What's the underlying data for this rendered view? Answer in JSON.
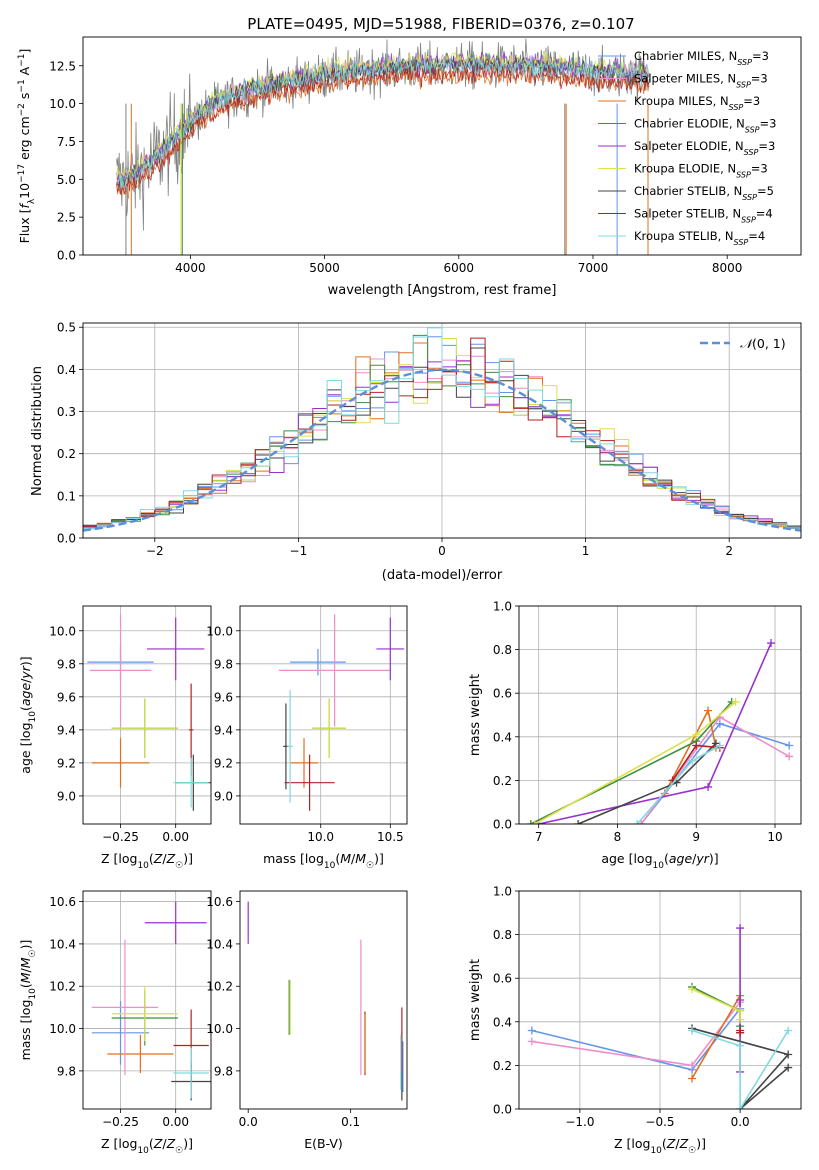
{
  "figure_title": "PLATE=0495, MJD=51988, FIBERID=0376, z=0.107",
  "chart_data": [
    {
      "type": "line",
      "id": "spectrum",
      "xlabel": "wavelength [Angstrom, rest frame]",
      "ylabel": "Flux [f_λ 10^-17 erg cm^-2 s^-1 A^-1]",
      "xlim": [
        3200,
        8550
      ],
      "ylim": [
        0,
        14.4
      ],
      "xticks": [
        4000,
        5000,
        6000,
        7000,
        8000
      ],
      "yticks": [
        0.0,
        2.5,
        5.0,
        7.5,
        10.0,
        12.5
      ],
      "grid": false,
      "legend_position": "right",
      "continuum_points": [
        [
          3450,
          4.8
        ],
        [
          3600,
          5.3
        ],
        [
          3700,
          6.0
        ],
        [
          3850,
          7.3
        ],
        [
          4000,
          8.7
        ],
        [
          4200,
          10.0
        ],
        [
          4500,
          11.0
        ],
        [
          5000,
          11.8
        ],
        [
          5500,
          12.3
        ],
        [
          6000,
          12.5
        ],
        [
          6500,
          12.4
        ],
        [
          6800,
          12.2
        ],
        [
          7000,
          12.0
        ],
        [
          7300,
          11.9
        ],
        [
          7420,
          11.8
        ]
      ],
      "series": [
        {
          "name": "Chabrier MILES, N_SSP=3",
          "color": "#6495ed"
        },
        {
          "name": "Salpeter MILES, N_SSP=3",
          "color": "#f08ccc"
        },
        {
          "name": "Kroupa MILES, N_SSP=3",
          "color": "#e07020"
        },
        {
          "name": "Chabrier ELODIE, N_SSP=3",
          "color": "#3f8f3f"
        },
        {
          "name": "Salpeter ELODIE, N_SSP=3",
          "color": "#9932cc"
        },
        {
          "name": "Kroupa ELODIE, N_SSP=3",
          "color": "#dce14a"
        },
        {
          "name": "Chabrier STELIB, N_SSP=5",
          "color": "#444444"
        },
        {
          "name": "Salpeter STELIB, N_SSP=4",
          "color": "#b22222"
        },
        {
          "name": "Kroupa STELIB, N_SSP=4",
          "color": "#7fd9e0"
        }
      ]
    },
    {
      "type": "line",
      "id": "residual-histogram",
      "xlabel": "(data-model)/error",
      "ylabel": "Normed distribution",
      "xlim": [
        -2.5,
        2.5
      ],
      "ylim": [
        0,
        0.51
      ],
      "xticks": [
        -2,
        -1,
        0,
        1,
        2
      ],
      "yticks": [
        0.0,
        0.1,
        0.2,
        0.3,
        0.4,
        0.5
      ],
      "grid": true,
      "legend_position": "top-right",
      "legend_label": "N(0,1)",
      "bins_start": -2.5,
      "bin_width": 0.1,
      "curve": "normal pdf, mean 0, sigma 1"
    },
    {
      "type": "scatter",
      "id": "age-vs-Z",
      "xlabel": "Z [log10(Z/Z☉)]",
      "ylabel": "age [log10(age/yr)]",
      "xlim": [
        -0.42,
        0.16
      ],
      "ylim": [
        8.83,
        10.15
      ],
      "xticks": [
        -0.25,
        0.0
      ],
      "yticks": [
        9.0,
        9.2,
        9.4,
        9.6,
        9.8,
        10.0
      ],
      "grid": true,
      "points": [
        {
          "color": "#6495ed",
          "x": -0.25,
          "y": 9.81,
          "xerr": 0.15,
          "yerr": 0.1
        },
        {
          "color": "#e07020",
          "x": -0.25,
          "y": 9.2,
          "xerr": 0.13,
          "yerr": 0.15
        },
        {
          "color": "#f08ccc",
          "x": -0.25,
          "y": 9.76,
          "xerr": 0.14,
          "yerr": 0.34
        },
        {
          "color": "#3f8f3f",
          "x": -0.14,
          "y": 9.41,
          "xerr": 0.15,
          "yerr": 0.18
        },
        {
          "color": "#dce14a",
          "x": -0.14,
          "y": 9.41,
          "xerr": 0.15,
          "yerr": 0.18
        },
        {
          "color": "#9932cc",
          "x": 0.0,
          "y": 9.89,
          "xerr": 0.13,
          "yerr": 0.19
        },
        {
          "color": "#b22222",
          "x": 0.07,
          "y": 9.4,
          "xerr": 0.01,
          "yerr": 0.28
        },
        {
          "color": "#444444",
          "x": 0.08,
          "y": 9.08,
          "xerr": 0.08,
          "yerr": 0.17
        },
        {
          "color": "#7fd9e0",
          "x": 0.07,
          "y": 9.08,
          "xerr": 0.08,
          "yerr": 0.15
        }
      ]
    },
    {
      "type": "scatter",
      "id": "age-vs-mass",
      "xlabel": "mass [log10(M/M☉)]",
      "ylabel": "",
      "xlim": [
        9.42,
        10.62
      ],
      "ylim": [
        8.83,
        10.15
      ],
      "xticks": [
        10.0,
        10.5
      ],
      "yticks": [
        9.0,
        9.2,
        9.4,
        9.6,
        9.8,
        10.0
      ],
      "grid": true,
      "points": [
        {
          "color": "#6495ed",
          "x": 9.98,
          "y": 9.81,
          "xerr": 0.2,
          "yerr": 0.08
        },
        {
          "color": "#e07020",
          "x": 9.88,
          "y": 9.2,
          "xerr": 0.1,
          "yerr": 0.15
        },
        {
          "color": "#f08ccc",
          "x": 10.1,
          "y": 9.76,
          "xerr": 0.4,
          "yerr": 0.34
        },
        {
          "color": "#3f8f3f",
          "x": 10.06,
          "y": 9.41,
          "xerr": 0.12,
          "yerr": 0.18
        },
        {
          "color": "#dce14a",
          "x": 10.06,
          "y": 9.41,
          "xerr": 0.12,
          "yerr": 0.18
        },
        {
          "color": "#9932cc",
          "x": 10.5,
          "y": 9.89,
          "xerr": 0.1,
          "yerr": 0.19
        },
        {
          "color": "#b22222",
          "x": 9.92,
          "y": 9.08,
          "xerr": 0.18,
          "yerr": 0.17
        },
        {
          "color": "#444444",
          "x": 9.75,
          "y": 9.3,
          "xerr": 0.02,
          "yerr": 0.26
        },
        {
          "color": "#7fd9e0",
          "x": 9.78,
          "y": 9.3,
          "xerr": 0.02,
          "yerr": 0.34
        }
      ]
    },
    {
      "type": "line",
      "id": "mass-weight-vs-age",
      "xlabel": "age [log10(age/yr)]",
      "ylabel": "mass weight",
      "xlim": [
        6.75,
        10.33
      ],
      "ylim": [
        0,
        1.0
      ],
      "xticks": [
        7,
        8,
        9,
        10
      ],
      "yticks": [
        0.0,
        0.2,
        0.4,
        0.6,
        0.8,
        1.0
      ],
      "grid": true,
      "series": [
        {
          "color": "#6495ed",
          "x": [
            8.3,
            9.3,
            10.18
          ],
          "y": [
            0.0,
            0.46,
            0.36
          ]
        },
        {
          "color": "#f08ccc",
          "x": [
            8.3,
            9.3,
            10.18
          ],
          "y": [
            0.0,
            0.49,
            0.31
          ]
        },
        {
          "color": "#e07020",
          "x": [
            8.6,
            9.15,
            9.25
          ],
          "y": [
            0.14,
            0.52,
            0.35
          ]
        },
        {
          "color": "#3f8f3f",
          "x": [
            6.9,
            9.0,
            9.45
          ],
          "y": [
            0.0,
            0.38,
            0.56
          ]
        },
        {
          "color": "#9932cc",
          "x": [
            7.0,
            9.15,
            9.95
          ],
          "y": [
            0.0,
            0.17,
            0.83
          ]
        },
        {
          "color": "#dce14a",
          "x": [
            6.95,
            9.0,
            9.5
          ],
          "y": [
            0.0,
            0.41,
            0.56
          ]
        },
        {
          "color": "#444444",
          "x": [
            7.5,
            8.75,
            9.25
          ],
          "y": [
            0.0,
            0.19,
            0.37
          ]
        },
        {
          "color": "#b22222",
          "x": [
            8.7,
            9.0,
            9.3
          ],
          "y": [
            0.2,
            0.36,
            0.35
          ]
        },
        {
          "color": "#7fd9e0",
          "x": [
            8.25,
            8.95,
            9.3
          ],
          "y": [
            0.0,
            0.29,
            0.36
          ]
        }
      ]
    },
    {
      "type": "scatter",
      "id": "mass-vs-Z",
      "xlabel": "Z [log10(Z/Z☉)]",
      "ylabel": "mass [log10(M/M☉)]",
      "xlim": [
        -0.42,
        0.16
      ],
      "ylim": [
        9.62,
        10.65
      ],
      "xticks": [
        -0.25,
        0.0
      ],
      "yticks": [
        9.8,
        10.0,
        10.2,
        10.4,
        10.6
      ],
      "grid": true,
      "points": [
        {
          "color": "#6495ed",
          "x": -0.25,
          "y": 9.98,
          "xerr": 0.13,
          "yerr": 0.15
        },
        {
          "color": "#e07020",
          "x": -0.16,
          "y": 9.88,
          "xerr": 0.15,
          "yerr": 0.09
        },
        {
          "color": "#f08ccc",
          "x": -0.23,
          "y": 10.1,
          "xerr": 0.15,
          "yerr": 0.32
        },
        {
          "color": "#3f8f3f",
          "x": -0.14,
          "y": 10.05,
          "xerr": 0.15,
          "yerr": 0.13
        },
        {
          "color": "#dce14a",
          "x": -0.14,
          "y": 10.07,
          "xerr": 0.15,
          "yerr": 0.13
        },
        {
          "color": "#9932cc",
          "x": 0.0,
          "y": 10.5,
          "xerr": 0.14,
          "yerr": 0.1
        },
        {
          "color": "#b22222",
          "x": 0.07,
          "y": 9.92,
          "xerr": 0.08,
          "yerr": 0.17
        },
        {
          "color": "#444444",
          "x": 0.07,
          "y": 9.75,
          "xerr": 0.09,
          "yerr": 0.09
        },
        {
          "color": "#7fd9e0",
          "x": 0.07,
          "y": 9.79,
          "xerr": 0.08,
          "yerr": 0.12
        }
      ]
    },
    {
      "type": "scatter",
      "id": "mass-vs-EBV",
      "xlabel": "E(B-V)",
      "ylabel": "",
      "xlim": [
        -0.008,
        0.155
      ],
      "ylim": [
        9.62,
        10.65
      ],
      "xticks": [
        0.0,
        0.1
      ],
      "yticks": [
        9.8,
        10.0,
        10.2,
        10.4,
        10.6
      ],
      "grid": false,
      "points": [
        {
          "color": "#9932cc",
          "x": 0.0,
          "y": 10.5,
          "xerr": 0.0,
          "yerr": 0.1
        },
        {
          "color": "#3f8f3f",
          "x": 0.04,
          "y": 10.1,
          "xerr": 0.0,
          "yerr": 0.13
        },
        {
          "color": "#dce14a",
          "x": 0.041,
          "y": 10.1,
          "xerr": 0.0,
          "yerr": 0.13
        },
        {
          "color": "#f08ccc",
          "x": 0.11,
          "y": 10.1,
          "xerr": 0.0,
          "yerr": 0.32
        },
        {
          "color": "#b22222",
          "x": 0.114,
          "y": 9.93,
          "xerr": 0.0,
          "yerr": 0.15
        },
        {
          "color": "#e07020",
          "x": 0.114,
          "y": 9.93,
          "xerr": 0.0,
          "yerr": 0.14
        },
        {
          "color": "#6495ed",
          "x": 0.151,
          "y": 9.82,
          "xerr": 0.0,
          "yerr": 0.12
        },
        {
          "color": "#444444",
          "x": 0.15,
          "y": 9.82,
          "xerr": 0.0,
          "yerr": 0.16
        },
        {
          "color": "#b22222",
          "x": 0.15,
          "y": 9.95,
          "xerr": 0.0,
          "yerr": 0.15
        },
        {
          "color": "#7fd9e0",
          "x": 0.149,
          "y": 9.84,
          "xerr": 0.0,
          "yerr": 0.13
        }
      ]
    },
    {
      "type": "line",
      "id": "mass-weight-vs-Z",
      "xlabel": "Z [log10(Z/Z☉)]",
      "ylabel": "mass weight",
      "xlim": [
        -1.38,
        0.38
      ],
      "ylim": [
        0,
        1.0
      ],
      "xticks": [
        -1.0,
        -0.5,
        0.0
      ],
      "yticks": [
        0.0,
        0.2,
        0.4,
        0.6,
        0.8,
        1.0
      ],
      "grid": true,
      "series": [
        {
          "color": "#6495ed",
          "x": [
            -1.3,
            -0.3,
            0.0
          ],
          "y": [
            0.36,
            0.18,
            0.46
          ]
        },
        {
          "color": "#f08ccc",
          "x": [
            -1.3,
            -0.3,
            0.0
          ],
          "y": [
            0.31,
            0.2,
            0.49
          ]
        },
        {
          "color": "#e07020",
          "x": [
            -0.3,
            0.0,
            0.0
          ],
          "y": [
            0.14,
            0.52,
            0.35
          ]
        },
        {
          "color": "#3f8f3f",
          "x": [
            -0.3,
            0.0,
            0.0
          ],
          "y": [
            0.56,
            0.45,
            0.38
          ]
        },
        {
          "color": "#9932cc",
          "x": [
            0.0,
            0.0,
            0.0
          ],
          "y": [
            0.17,
            0.83,
            0.5
          ]
        },
        {
          "color": "#dce14a",
          "x": [
            -0.3,
            0.0,
            0.0
          ],
          "y": [
            0.55,
            0.45,
            0.41
          ]
        },
        {
          "color": "#444444",
          "x": [
            -0.3,
            0.3,
            0.0,
            0.3
          ],
          "y": [
            0.37,
            0.25,
            0.0,
            0.19
          ]
        },
        {
          "color": "#b22222",
          "x": [
            0.0,
            0.0
          ],
          "y": [
            0.35,
            0.36
          ]
        },
        {
          "color": "#7fd9e0",
          "x": [
            -0.3,
            0.0,
            0.0,
            0.3
          ],
          "y": [
            0.36,
            0.29,
            0.0,
            0.36
          ]
        }
      ]
    }
  ]
}
